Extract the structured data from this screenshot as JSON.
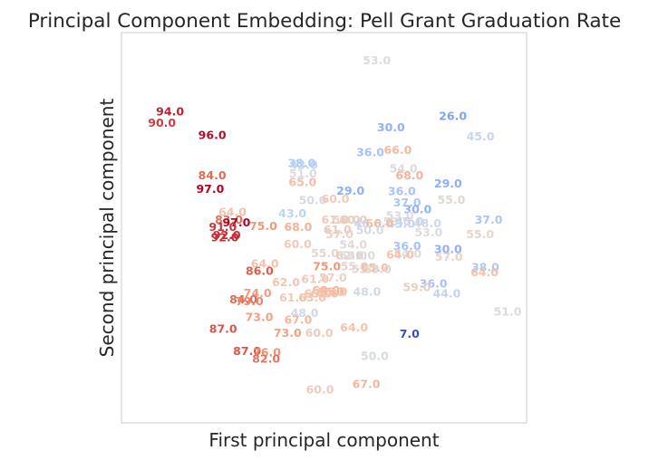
{
  "chart_data": {
    "type": "scatter",
    "title": "Principal Component Embedding: Pell Grant Graduation Rate",
    "xlabel": "First principal component",
    "ylabel": "Second principal component",
    "xlim": [
      0,
      100
    ],
    "ylim": [
      0,
      100
    ],
    "grid": false,
    "legend": "none",
    "colormap": "coolwarm",
    "color_range": [
      7,
      97
    ],
    "points": [
      {
        "x": 63.0,
        "y": 92.9,
        "label": "53.0",
        "value": 53
      },
      {
        "x": 12.0,
        "y": 79.8,
        "label": "94.0",
        "value": 94
      },
      {
        "x": 10.0,
        "y": 76.9,
        "label": "90.0",
        "value": 90
      },
      {
        "x": 22.4,
        "y": 73.8,
        "label": "96.0",
        "value": 96
      },
      {
        "x": 66.5,
        "y": 75.8,
        "label": "30.0",
        "value": 30
      },
      {
        "x": 81.8,
        "y": 78.6,
        "label": "26.0",
        "value": 26
      },
      {
        "x": 88.6,
        "y": 73.4,
        "label": "45.0",
        "value": 45
      },
      {
        "x": 61.4,
        "y": 69.4,
        "label": "36.0",
        "value": 36
      },
      {
        "x": 68.2,
        "y": 70.0,
        "label": "66.0",
        "value": 66
      },
      {
        "x": 44.5,
        "y": 66.6,
        "label": "38.0",
        "value": 38
      },
      {
        "x": 45.0,
        "y": 66.1,
        "label": "43.0",
        "value": 43
      },
      {
        "x": 44.8,
        "y": 63.9,
        "label": "51.0",
        "value": 51
      },
      {
        "x": 69.6,
        "y": 65.2,
        "label": "54.0",
        "value": 54
      },
      {
        "x": 71.1,
        "y": 63.4,
        "label": "68.0",
        "value": 68
      },
      {
        "x": 22.4,
        "y": 63.5,
        "label": "84.0",
        "value": 84
      },
      {
        "x": 44.7,
        "y": 61.7,
        "label": "65.0",
        "value": 65
      },
      {
        "x": 80.6,
        "y": 61.4,
        "label": "29.0",
        "value": 29
      },
      {
        "x": 56.5,
        "y": 59.5,
        "label": "29.0",
        "value": 29
      },
      {
        "x": 69.2,
        "y": 59.4,
        "label": "36.0",
        "value": 36
      },
      {
        "x": 21.9,
        "y": 60.0,
        "label": "97.0",
        "value": 97
      },
      {
        "x": 47.2,
        "y": 57.1,
        "label": "50.0",
        "value": 50
      },
      {
        "x": 52.8,
        "y": 57.4,
        "label": "60.0",
        "value": 60
      },
      {
        "x": 70.5,
        "y": 56.5,
        "label": "37.0",
        "value": 37
      },
      {
        "x": 81.4,
        "y": 57.2,
        "label": "55.0",
        "value": 55
      },
      {
        "x": 73.1,
        "y": 54.8,
        "label": "30.0",
        "value": 30
      },
      {
        "x": 68.7,
        "y": 53.1,
        "label": "53.0",
        "value": 53
      },
      {
        "x": 68.0,
        "y": 51.6,
        "label": "53.0",
        "value": 53
      },
      {
        "x": 69.0,
        "y": 51.0,
        "label": "43.0",
        "value": 43
      },
      {
        "x": 27.4,
        "y": 54.1,
        "label": "64.0",
        "value": 64
      },
      {
        "x": 42.2,
        "y": 53.7,
        "label": "43.0",
        "value": 43
      },
      {
        "x": 26.5,
        "y": 52.1,
        "label": "83.0",
        "value": 83
      },
      {
        "x": 28.4,
        "y": 51.4,
        "label": "97.0",
        "value": 97
      },
      {
        "x": 52.8,
        "y": 52.1,
        "label": "61.0",
        "value": 61
      },
      {
        "x": 55.5,
        "y": 52.1,
        "label": "58.0",
        "value": 58
      },
      {
        "x": 57.2,
        "y": 52.1,
        "label": "60.0",
        "value": 60
      },
      {
        "x": 60.8,
        "y": 51.2,
        "label": "46.0",
        "value": 46
      },
      {
        "x": 63.7,
        "y": 51.2,
        "label": "66.0",
        "value": 66
      },
      {
        "x": 71.1,
        "y": 51.6,
        "label": "45.0",
        "value": 45
      },
      {
        "x": 75.5,
        "y": 51.2,
        "label": "48.0",
        "value": 48
      },
      {
        "x": 90.6,
        "y": 52.1,
        "label": "37.0",
        "value": 37
      },
      {
        "x": 25.0,
        "y": 50.2,
        "label": "91.0",
        "value": 91
      },
      {
        "x": 35.0,
        "y": 50.5,
        "label": "75.0",
        "value": 75
      },
      {
        "x": 43.6,
        "y": 50.2,
        "label": "68.0",
        "value": 68
      },
      {
        "x": 53.3,
        "y": 49.5,
        "label": "61.0",
        "value": 61
      },
      {
        "x": 53.8,
        "y": 48.4,
        "label": "57.0",
        "value": 57
      },
      {
        "x": 61.3,
        "y": 49.4,
        "label": "50.0",
        "value": 50
      },
      {
        "x": 75.8,
        "y": 48.8,
        "label": "53.0",
        "value": 53
      },
      {
        "x": 88.5,
        "y": 48.4,
        "label": "55.0",
        "value": 55
      },
      {
        "x": 25.5,
        "y": 47.6,
        "label": "92.0",
        "value": 92
      },
      {
        "x": 26.0,
        "y": 48.2,
        "label": "92.0",
        "value": 92
      },
      {
        "x": 43.5,
        "y": 45.8,
        "label": "60.0",
        "value": 60
      },
      {
        "x": 57.2,
        "y": 45.7,
        "label": "54.0",
        "value": 54
      },
      {
        "x": 70.5,
        "y": 45.4,
        "label": "36.0",
        "value": 36
      },
      {
        "x": 80.6,
        "y": 44.5,
        "label": "30.0",
        "value": 30
      },
      {
        "x": 50.2,
        "y": 43.5,
        "label": "55.0",
        "value": 55
      },
      {
        "x": 56.3,
        "y": 42.9,
        "label": "62.0",
        "value": 62
      },
      {
        "x": 57.2,
        "y": 42.9,
        "label": "52.0",
        "value": 52
      },
      {
        "x": 59.2,
        "y": 42.9,
        "label": "51.0",
        "value": 51
      },
      {
        "x": 70.6,
        "y": 43.4,
        "label": "54.0",
        "value": 54
      },
      {
        "x": 68.8,
        "y": 43.1,
        "label": "64.0",
        "value": 64
      },
      {
        "x": 80.8,
        "y": 42.6,
        "label": "57.0",
        "value": 57
      },
      {
        "x": 35.4,
        "y": 40.8,
        "label": "64.0",
        "value": 64
      },
      {
        "x": 50.7,
        "y": 40.1,
        "label": "75.0",
        "value": 75
      },
      {
        "x": 34.1,
        "y": 39.0,
        "label": "86.0",
        "value": 86
      },
      {
        "x": 57.5,
        "y": 40.1,
        "label": "55.0",
        "value": 55
      },
      {
        "x": 60.2,
        "y": 39.4,
        "label": "55.0",
        "value": 55
      },
      {
        "x": 62.5,
        "y": 39.8,
        "label": "65.0",
        "value": 65
      },
      {
        "x": 63.2,
        "y": 39.4,
        "label": "55.0",
        "value": 55
      },
      {
        "x": 89.8,
        "y": 39.9,
        "label": "38.0",
        "value": 38
      },
      {
        "x": 89.6,
        "y": 38.6,
        "label": "64.0",
        "value": 64
      },
      {
        "x": 47.8,
        "y": 36.9,
        "label": "61.0",
        "value": 61
      },
      {
        "x": 52.2,
        "y": 37.2,
        "label": "57.0",
        "value": 57
      },
      {
        "x": 40.6,
        "y": 36.1,
        "label": "62.0",
        "value": 62
      },
      {
        "x": 77.0,
        "y": 35.7,
        "label": "36.0",
        "value": 36
      },
      {
        "x": 72.9,
        "y": 34.8,
        "label": "59.0",
        "value": 59
      },
      {
        "x": 80.3,
        "y": 33.2,
        "label": "44.0",
        "value": 44
      },
      {
        "x": 60.6,
        "y": 33.7,
        "label": "48.0",
        "value": 48
      },
      {
        "x": 50.5,
        "y": 34.0,
        "label": "68.0",
        "value": 68
      },
      {
        "x": 51.6,
        "y": 33.7,
        "label": "66.0",
        "value": 66
      },
      {
        "x": 48.5,
        "y": 33.2,
        "label": "63.0",
        "value": 63
      },
      {
        "x": 50.1,
        "y": 33.2,
        "label": "63.0",
        "value": 63
      },
      {
        "x": 52.3,
        "y": 33.6,
        "label": "65.0",
        "value": 65
      },
      {
        "x": 33.6,
        "y": 33.3,
        "label": "74.0",
        "value": 74
      },
      {
        "x": 42.4,
        "y": 32.1,
        "label": "61.0",
        "value": 61
      },
      {
        "x": 47.1,
        "y": 32.1,
        "label": "63.0",
        "value": 63
      },
      {
        "x": 30.1,
        "y": 31.7,
        "label": "84.0",
        "value": 84
      },
      {
        "x": 31.6,
        "y": 31.2,
        "label": "79.0",
        "value": 79
      },
      {
        "x": 45.2,
        "y": 28.2,
        "label": "48.0",
        "value": 48
      },
      {
        "x": 95.3,
        "y": 28.5,
        "label": "51.0",
        "value": 51
      },
      {
        "x": 34.0,
        "y": 27.2,
        "label": "73.0",
        "value": 73
      },
      {
        "x": 43.6,
        "y": 26.4,
        "label": "67.0",
        "value": 67
      },
      {
        "x": 25.1,
        "y": 24.1,
        "label": "87.0",
        "value": 87
      },
      {
        "x": 57.4,
        "y": 24.5,
        "label": "64.0",
        "value": 64
      },
      {
        "x": 41.0,
        "y": 23.1,
        "label": "73.0",
        "value": 73
      },
      {
        "x": 48.8,
        "y": 23.1,
        "label": "60.0",
        "value": 60
      },
      {
        "x": 71.1,
        "y": 22.8,
        "label": "7.0",
        "value": 7
      },
      {
        "x": 31.0,
        "y": 18.5,
        "label": "87.0",
        "value": 87
      },
      {
        "x": 35.9,
        "y": 18.1,
        "label": "76.0",
        "value": 76
      },
      {
        "x": 35.7,
        "y": 16.5,
        "label": "82.0",
        "value": 82
      },
      {
        "x": 62.5,
        "y": 17.2,
        "label": "50.0",
        "value": 50
      },
      {
        "x": 49.0,
        "y": 8.6,
        "label": "60.0",
        "value": 60
      },
      {
        "x": 60.4,
        "y": 10.0,
        "label": "67.0",
        "value": 67
      }
    ]
  }
}
